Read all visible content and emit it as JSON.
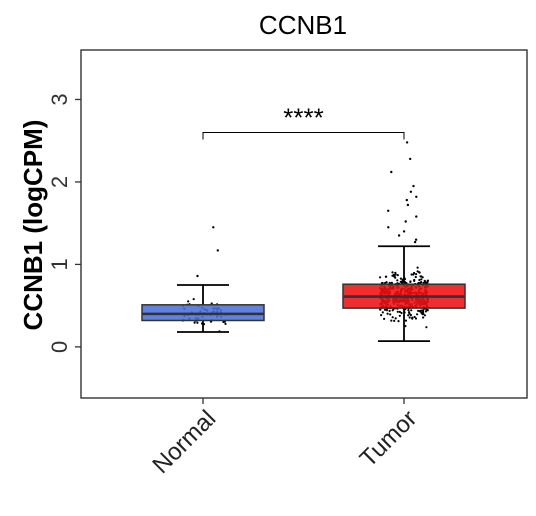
{
  "chart_data": {
    "type": "box",
    "title": "CCNB1",
    "xlabel": "",
    "ylabel": "CCNB1 (logCPM)",
    "ylim": [
      -0.62,
      3.6
    ],
    "yticks": [
      0,
      1,
      2,
      3
    ],
    "grid": false,
    "legend": "none",
    "categories": [
      "Normal",
      "Tumor"
    ],
    "groups": [
      {
        "name": "Normal",
        "color": "#4a6fd8",
        "n_points": 60,
        "min": 0.18,
        "q1": 0.32,
        "median": 0.4,
        "q3": 0.51,
        "max": 0.75,
        "outliers": [
          1.45,
          1.17,
          0.86
        ]
      },
      {
        "name": "Tumor",
        "color": "#ee1111",
        "n_points": 480,
        "min": 0.07,
        "q1": 0.47,
        "median": 0.61,
        "q3": 0.76,
        "max": 1.22,
        "outliers": [
          2.48,
          2.28,
          2.12,
          1.95,
          1.88,
          1.82,
          1.78,
          1.72,
          1.65,
          1.58,
          1.52,
          1.45,
          1.4,
          1.35,
          1.3,
          1.27
        ]
      }
    ],
    "significance": {
      "between": [
        "Normal",
        "Tumor"
      ],
      "label": "****",
      "y": 2.6
    }
  }
}
